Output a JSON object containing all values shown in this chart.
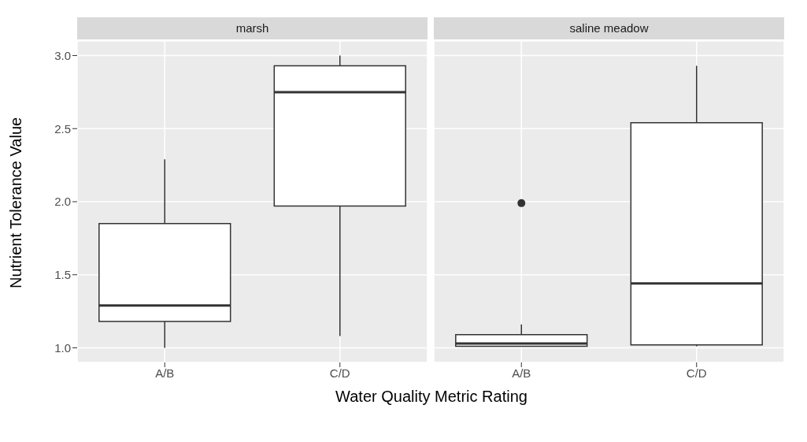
{
  "chart_data": [
    {
      "type": "box",
      "title": "marsh",
      "xlabel": "Water Quality Metric Rating",
      "ylabel": "Nutrient Tolerance Value",
      "categories": [
        "A/B",
        "C/D"
      ],
      "color": "#333333",
      "boxes": [
        {
          "low": 1.0,
          "q1": 1.18,
          "median": 1.29,
          "q3": 1.85,
          "high": 2.29
        },
        {
          "low": 1.08,
          "q1": 1.97,
          "median": 2.75,
          "q3": 2.93,
          "high": 3.0
        }
      ],
      "ylim": [
        0.9,
        3.1
      ],
      "yticks": [
        {
          "value": 1,
          "label": "1.0"
        },
        {
          "value": 1.5,
          "label": "1.5"
        },
        {
          "value": 2,
          "label": "2.0"
        },
        {
          "value": 2.5,
          "label": "2.5"
        },
        {
          "value": 3,
          "label": "3.0"
        }
      ],
      "grid": true
    },
    {
      "type": "box",
      "title": "saline meadow",
      "categories": [
        "A/B",
        "C/D"
      ],
      "color": "#333333",
      "boxes": [
        {
          "low": 1.01,
          "q1": 1.01,
          "median": 1.03,
          "q3": 1.09,
          "high": 1.16,
          "outliers": [
            1.99
          ]
        },
        {
          "low": 1.01,
          "q1": 1.02,
          "median": 1.44,
          "q3": 2.54,
          "high": 2.93
        }
      ],
      "ylim": [
        0.9,
        3.1
      ],
      "yticks": [
        1,
        1.5,
        2,
        2.5,
        3
      ],
      "grid": true,
      "tick_labels": "x"
    }
  ]
}
